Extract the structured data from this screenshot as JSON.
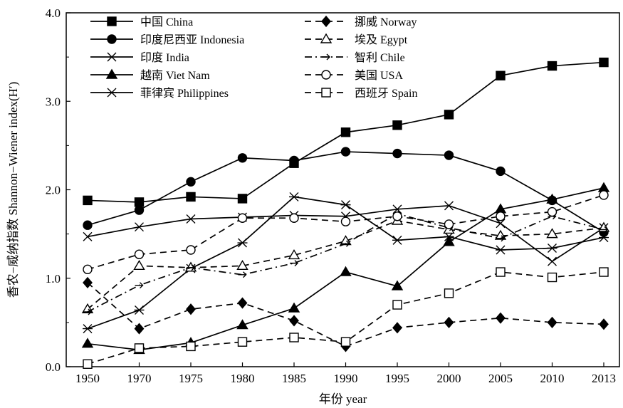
{
  "chart_data": {
    "type": "line",
    "xlabel": "年份 year",
    "ylabel": "香农−威纳指数 Shannon−Wiener index(H′)",
    "x": [
      "1950",
      "1970",
      "1975",
      "1980",
      "1985",
      "1990",
      "1995",
      "2000",
      "2005",
      "2010",
      "2013"
    ],
    "yticks": [
      "0.0",
      "1.0",
      "2.0",
      "3.0",
      "4.0"
    ],
    "ylim": [
      0,
      4
    ],
    "grid": false,
    "legend_position": "top-left, two columns",
    "series": [
      {
        "name": "中国 China",
        "marker": "filled-square",
        "dash": "solid",
        "values": [
          1.88,
          1.86,
          1.92,
          1.9,
          2.3,
          2.65,
          2.73,
          2.85,
          3.29,
          3.4,
          3.44
        ]
      },
      {
        "name": "印度尼西亚 Indonesia",
        "marker": "filled-circle",
        "dash": "solid",
        "values": [
          1.6,
          1.77,
          2.09,
          2.36,
          2.33,
          2.43,
          2.41,
          2.39,
          2.21,
          1.88,
          1.52
        ]
      },
      {
        "name": "印度 India",
        "marker": "x",
        "dash": "solid",
        "values": [
          1.47,
          1.58,
          1.67,
          1.69,
          1.71,
          1.7,
          1.78,
          1.82,
          1.62,
          1.19,
          1.57
        ]
      },
      {
        "name": "越南 Viet Nam",
        "marker": "filled-triangle",
        "dash": "solid",
        "values": [
          0.26,
          0.19,
          0.27,
          0.47,
          0.66,
          1.07,
          0.91,
          1.41,
          1.78,
          1.89,
          2.02
        ]
      },
      {
        "name": "菲律宾 Philippines",
        "marker": "asterisk",
        "dash": "solid",
        "values": [
          0.43,
          0.64,
          1.11,
          1.4,
          1.92,
          1.83,
          1.43,
          1.47,
          1.32,
          1.34,
          1.46
        ]
      },
      {
        "name": "挪威 Norway",
        "marker": "filled-diamond",
        "dash": "dashed",
        "values": [
          0.95,
          0.43,
          0.65,
          0.72,
          0.52,
          0.23,
          0.44,
          0.5,
          0.55,
          0.5,
          0.48
        ]
      },
      {
        "name": "埃及 Egypt",
        "marker": "open-triangle",
        "dash": "dashed",
        "values": [
          0.65,
          1.14,
          1.12,
          1.14,
          1.26,
          1.42,
          1.65,
          1.55,
          1.48,
          1.5,
          1.57
        ]
      },
      {
        "name": "智利 Chile",
        "marker": "arrow",
        "dash": "dashdot",
        "values": [
          0.62,
          0.92,
          1.12,
          1.04,
          1.17,
          1.39,
          1.73,
          1.57,
          1.45,
          1.7,
          1.55
        ]
      },
      {
        "name": "美国 USA",
        "marker": "open-circle",
        "dash": "dashed",
        "values": [
          1.1,
          1.27,
          1.32,
          1.68,
          1.68,
          1.64,
          1.7,
          1.61,
          1.7,
          1.75,
          1.94
        ]
      },
      {
        "name": "西班牙 Spain",
        "marker": "open-square",
        "dash": "dashed",
        "values": [
          0.03,
          0.21,
          0.23,
          0.28,
          0.33,
          0.28,
          0.7,
          0.83,
          1.07,
          1.01,
          1.07
        ]
      }
    ]
  }
}
